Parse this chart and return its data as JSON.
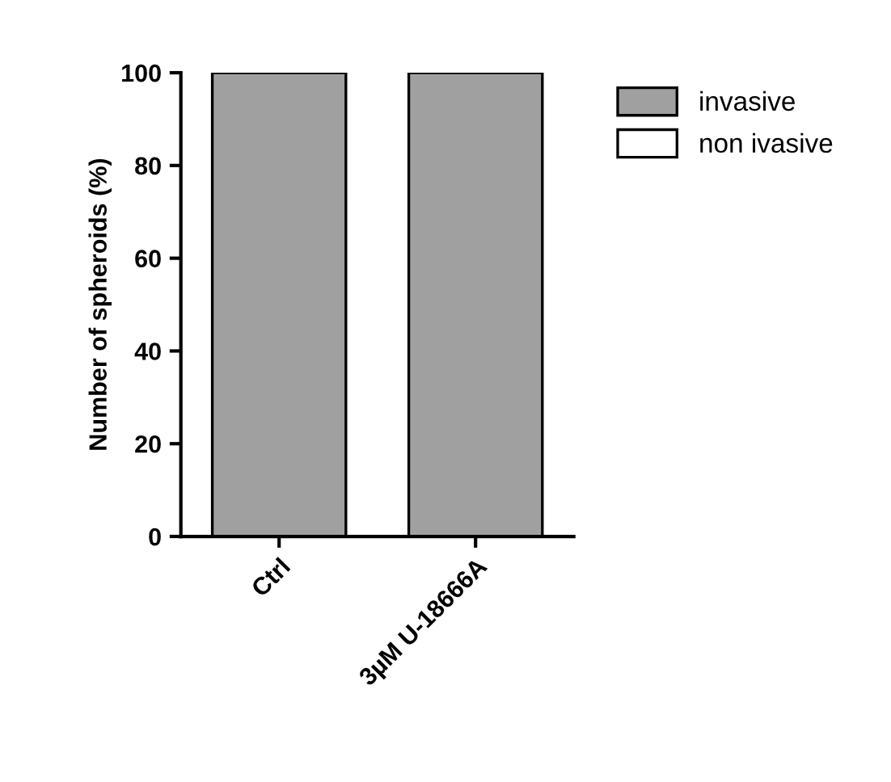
{
  "chart_data": {
    "type": "bar",
    "stacked": true,
    "ylabel": "Number of spheroids (%)",
    "categories": [
      "Ctrl",
      "3µM U-18666A"
    ],
    "series": [
      {
        "name": "invasive",
        "color": "#a0a0a0",
        "values": [
          100,
          100
        ]
      },
      {
        "name": "non ivasive",
        "color": "#ffffff",
        "values": [
          0,
          0
        ]
      }
    ],
    "ylim": [
      0,
      100
    ],
    "yticks": [
      0,
      20,
      40,
      60,
      80,
      100
    ],
    "legend": "top right",
    "grid": false
  }
}
